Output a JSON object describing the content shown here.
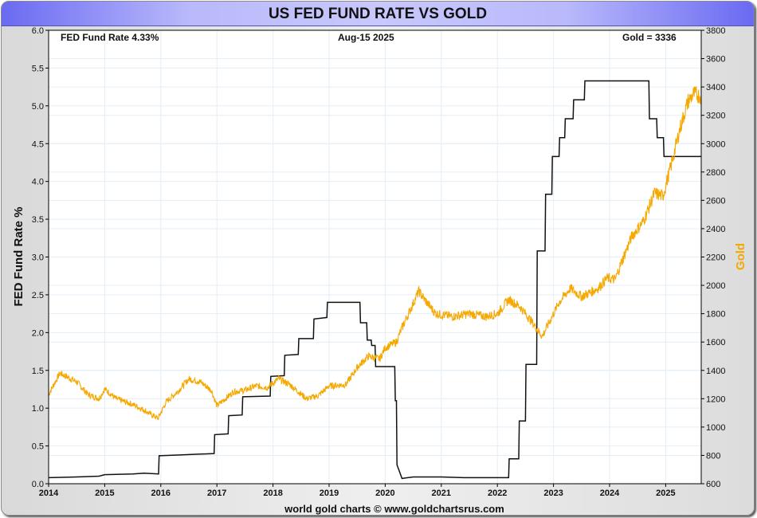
{
  "header": {
    "title": "US FED FUND RATE VS GOLD"
  },
  "annotations": {
    "rate_label": "FED Fund Rate 4.33%",
    "date_label": "Aug-15  2025",
    "gold_label": "Gold = 3336"
  },
  "footer": {
    "credit": "world gold charts © www.goldchartsrus.com"
  },
  "colors": {
    "gold": "#f5a800",
    "rate": "#111111",
    "grid": "#e4eef6",
    "title_bar": "#b9b9fb"
  },
  "chart_data": {
    "type": "line",
    "title": "US FED FUND RATE VS GOLD",
    "xlabel": "",
    "ylabel": "FED Fund Rate %",
    "y2label": "Gold",
    "xlim": [
      2014.0,
      2025.63
    ],
    "ylim": [
      0,
      6
    ],
    "y2lim": [
      600,
      3800
    ],
    "grid": true,
    "x_ticks": [
      "2014",
      "2015",
      "2016",
      "2017",
      "2018",
      "2019",
      "2020",
      "2021",
      "2022",
      "2023",
      "2024",
      "2025"
    ],
    "y_ticks": [
      "0.0",
      "0.5",
      "1.0",
      "1.5",
      "2.0",
      "2.5",
      "3.0",
      "3.5",
      "4.0",
      "4.5",
      "5.0",
      "5.5",
      "6.0"
    ],
    "y2_ticks": [
      "600",
      "800",
      "1000",
      "1200",
      "1400",
      "1600",
      "1800",
      "2000",
      "2200",
      "2400",
      "2600",
      "2800",
      "3000",
      "3200",
      "3400",
      "3600",
      "3800"
    ],
    "series": [
      {
        "name": "FED Fund Rate",
        "axis": "left",
        "color": "#111111",
        "x": [
          2014.0,
          2014.5,
          2014.9,
          2015.0,
          2015.5,
          2015.7,
          2015.96,
          2015.97,
          2016.3,
          2016.95,
          2016.96,
          2017.2,
          2017.21,
          2017.45,
          2017.46,
          2017.95,
          2017.96,
          2018.2,
          2018.21,
          2018.45,
          2018.46,
          2018.72,
          2018.73,
          2018.96,
          2018.97,
          2019.55,
          2019.56,
          2019.67,
          2019.68,
          2019.75,
          2019.76,
          2019.82,
          2019.83,
          2020.17,
          2020.18,
          2020.2,
          2020.21,
          2020.3,
          2020.5,
          2021.0,
          2021.4,
          2022.2,
          2022.21,
          2022.38,
          2022.39,
          2022.5,
          2022.51,
          2022.7,
          2022.71,
          2022.85,
          2022.86,
          2022.97,
          2022.98,
          2023.1,
          2023.11,
          2023.2,
          2023.21,
          2023.35,
          2023.36,
          2023.55,
          2023.56,
          2024.7,
          2024.71,
          2024.84,
          2024.85,
          2024.96,
          2024.97,
          2025.63
        ],
        "y": [
          0.08,
          0.09,
          0.1,
          0.12,
          0.13,
          0.14,
          0.13,
          0.37,
          0.38,
          0.4,
          0.65,
          0.66,
          0.9,
          0.91,
          1.15,
          1.16,
          1.42,
          1.43,
          1.7,
          1.71,
          1.92,
          1.92,
          2.18,
          2.2,
          2.4,
          2.4,
          2.13,
          2.13,
          1.9,
          1.9,
          1.83,
          1.83,
          1.55,
          1.55,
          1.1,
          1.1,
          0.25,
          0.07,
          0.09,
          0.09,
          0.08,
          0.08,
          0.33,
          0.33,
          0.83,
          0.83,
          1.58,
          1.58,
          3.08,
          3.08,
          3.83,
          3.83,
          4.33,
          4.33,
          4.58,
          4.58,
          4.83,
          4.83,
          5.08,
          5.08,
          5.33,
          5.33,
          4.83,
          4.83,
          4.58,
          4.58,
          4.33,
          4.33
        ]
      },
      {
        "name": "Gold",
        "axis": "right",
        "color": "#f5a800",
        "x": [
          2014.0,
          2014.2,
          2014.5,
          2014.7,
          2014.9,
          2015.0,
          2015.2,
          2015.5,
          2015.7,
          2015.95,
          2016.1,
          2016.3,
          2016.5,
          2016.7,
          2016.9,
          2017.0,
          2017.3,
          2017.5,
          2017.7,
          2017.9,
          2018.1,
          2018.3,
          2018.6,
          2018.8,
          2019.0,
          2019.3,
          2019.5,
          2019.7,
          2019.9,
          2020.0,
          2020.2,
          2020.3,
          2020.6,
          2020.7,
          2020.9,
          2021.2,
          2021.5,
          2021.8,
          2022.0,
          2022.2,
          2022.4,
          2022.6,
          2022.8,
          2022.9,
          2023.1,
          2023.3,
          2023.5,
          2023.8,
          2023.95,
          2024.1,
          2024.2,
          2024.4,
          2024.6,
          2024.8,
          2024.95,
          2025.1,
          2025.25,
          2025.4,
          2025.5,
          2025.63
        ],
        "y": [
          1230,
          1380,
          1320,
          1230,
          1200,
          1270,
          1200,
          1160,
          1120,
          1060,
          1180,
          1250,
          1340,
          1320,
          1260,
          1150,
          1250,
          1260,
          1290,
          1280,
          1340,
          1300,
          1200,
          1220,
          1290,
          1300,
          1420,
          1500,
          1480,
          1560,
          1600,
          1700,
          1960,
          1900,
          1800,
          1780,
          1800,
          1780,
          1800,
          1900,
          1850,
          1750,
          1640,
          1720,
          1880,
          1980,
          1920,
          1980,
          2050,
          2040,
          2150,
          2350,
          2450,
          2650,
          2630,
          2850,
          3100,
          3300,
          3350,
          3336
        ]
      }
    ]
  }
}
